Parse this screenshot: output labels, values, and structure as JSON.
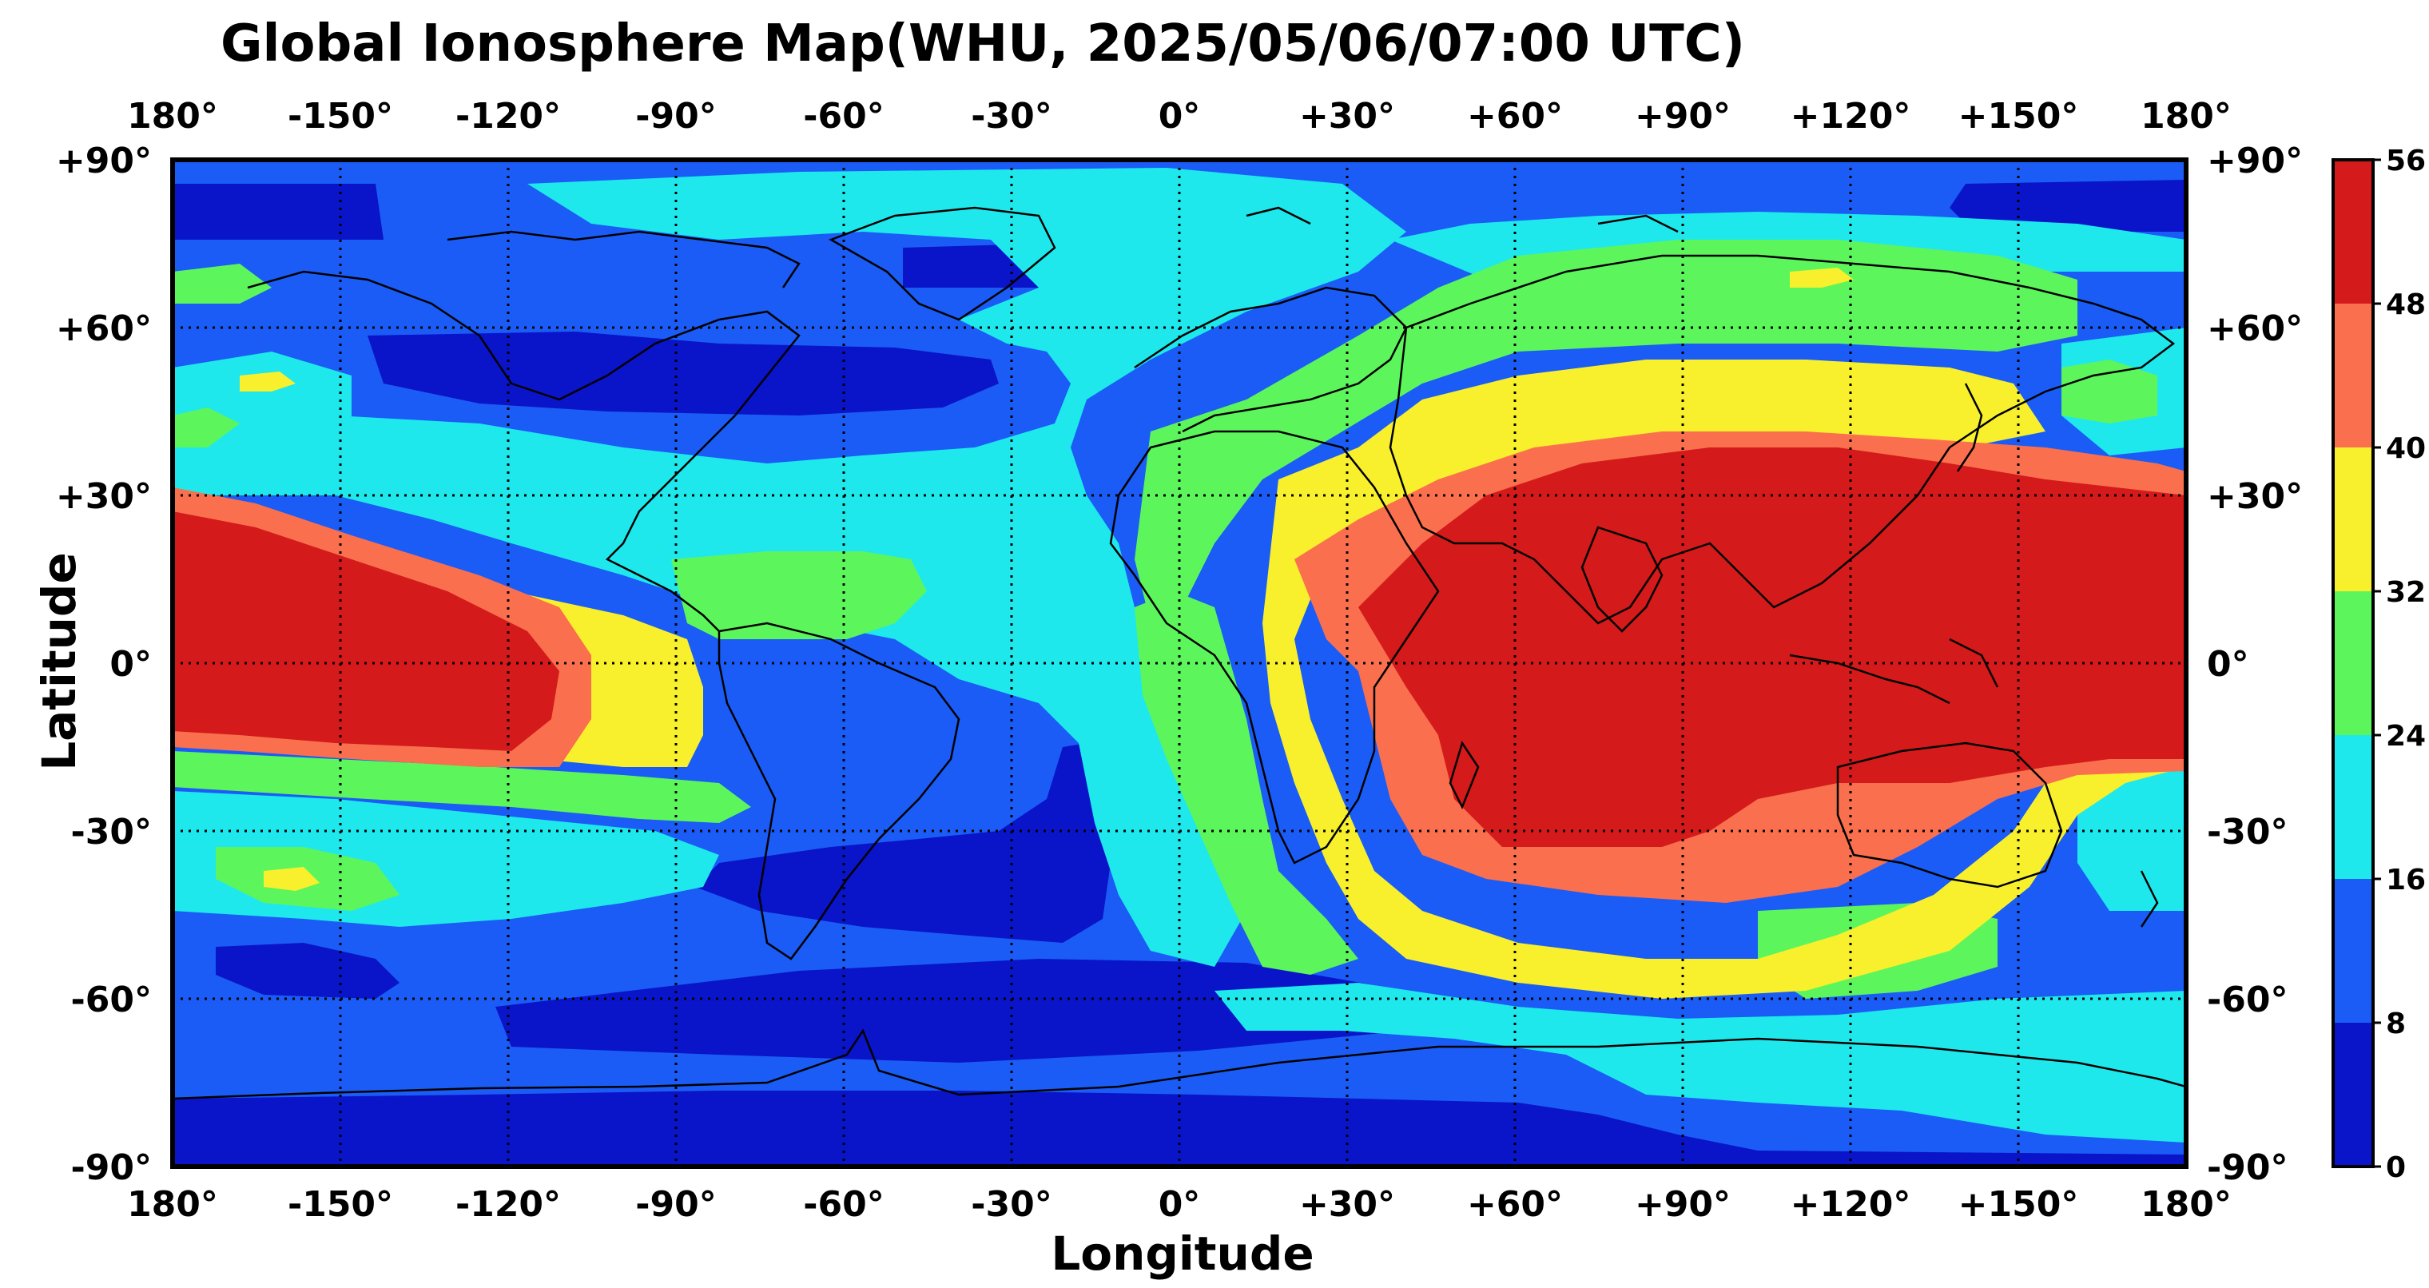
{
  "title": "Global Ionosphere Map(WHU, 2025/05/06/07:00 UTC)",
  "chart_data": {
    "type": "heatmap",
    "title": "Global Ionosphere Map(WHU, 2025/05/06/07:00 UTC)",
    "xlabel": "Longitude",
    "ylabel": "Latitude",
    "xlim": [
      -180,
      180
    ],
    "ylim": [
      -90,
      90
    ],
    "grid": true,
    "x_ticks": [
      -180,
      -150,
      -120,
      -90,
      -60,
      -30,
      0,
      30,
      60,
      90,
      120,
      150,
      180
    ],
    "x_tick_labels": [
      "180°",
      "-150°",
      "-120°",
      "-90°",
      "-60°",
      "-30°",
      "0°",
      "+30°",
      "+60°",
      "+90°",
      "+120°",
      "+150°",
      "180°"
    ],
    "y_ticks": [
      90,
      60,
      30,
      0,
      -30,
      -60,
      -90
    ],
    "y_tick_labels": [
      "+90°",
      "+60°",
      "+30°",
      "0°",
      "-30°",
      "-60°",
      "-90°"
    ],
    "colorbar": {
      "placement": "right",
      "ticks": [
        0,
        8,
        16,
        24,
        32,
        40,
        48,
        56
      ],
      "tick_labels": [
        "0",
        "8",
        "16",
        "24",
        "32",
        "40",
        "48",
        "56"
      ],
      "bins": [
        {
          "min": 0,
          "max": 8,
          "color": "#0a14c8"
        },
        {
          "min": 8,
          "max": 16,
          "color": "#1a5cf5"
        },
        {
          "min": 16,
          "max": 24,
          "color": "#1ee8ec"
        },
        {
          "min": 24,
          "max": 32,
          "color": "#5df55c"
        },
        {
          "min": 32,
          "max": 40,
          "color": "#f8f02c"
        },
        {
          "min": 40,
          "max": 48,
          "color": "#fa6f4e"
        },
        {
          "min": 48,
          "max": 56,
          "color": "#d41a1a"
        }
      ]
    },
    "tec_regions_approx": [
      {
        "level": 8,
        "area": "polar and high-latitude regions",
        "lon": [
          -180,
          180
        ],
        "lat": [
          60,
          90
        ]
      },
      {
        "level": 4,
        "area": "North America / North Atlantic",
        "lon": [
          -140,
          -60
        ],
        "lat": [
          45,
          62
        ]
      },
      {
        "level": 52,
        "area": "Eastern Pacific equatorial crest",
        "lon": [
          -180,
          -115
        ],
        "lat": [
          -18,
          30
        ]
      },
      {
        "level": 52,
        "area": "Africa / Indian Ocean / Asia / Western Pacific",
        "lon": [
          30,
          180
        ],
        "lat": [
          -35,
          40
        ]
      },
      {
        "level": 4,
        "area": "South Atlantic / South America",
        "lon": [
          -90,
          -10
        ],
        "lat": [
          -50,
          -15
        ]
      },
      {
        "level": 4,
        "area": "Southern Ocean / Antarctica",
        "lon": [
          -180,
          180
        ],
        "lat": [
          -90,
          -65
        ]
      },
      {
        "level": 36,
        "area": "Southern mid-latitudes south of Africa and Indian Ocean",
        "lon": [
          30,
          120
        ],
        "lat": [
          -60,
          -35
        ]
      }
    ]
  }
}
